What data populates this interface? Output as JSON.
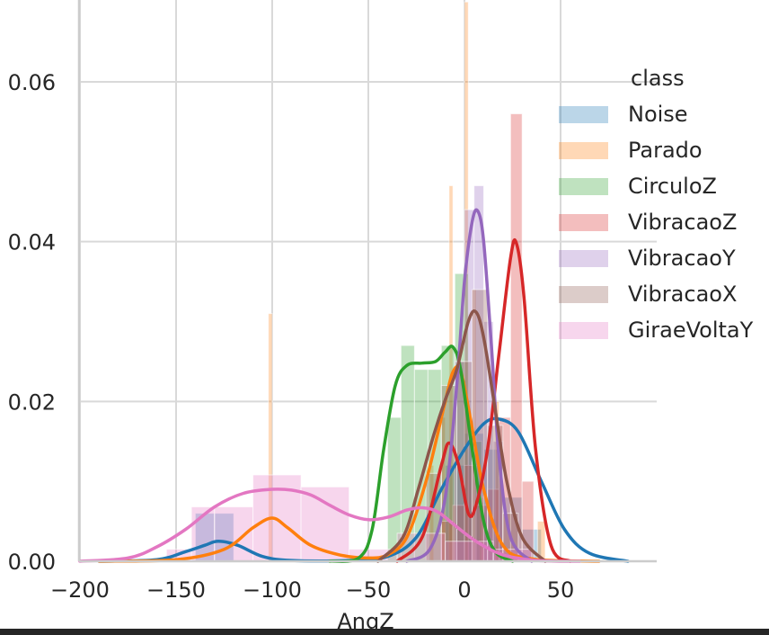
{
  "chart_data": {
    "type": "area",
    "title": "",
    "xlabel": "AngZ",
    "ylabel": "",
    "xlim": [
      -200,
      85
    ],
    "ylim": [
      0,
      0.07
    ],
    "xticks": [
      -200,
      -150,
      -100,
      -50,
      0,
      50
    ],
    "xtick_labels": [
      "−200",
      "−150",
      "−100",
      "−50",
      "0",
      "50"
    ],
    "yticks": [
      0.0,
      0.02,
      0.04,
      0.06
    ],
    "ytick_labels": [
      "0.00",
      "0.02",
      "0.04",
      "0.06"
    ],
    "grid": true,
    "legend": {
      "title": "class",
      "placement": "right"
    },
    "series": [
      {
        "name": "Noise",
        "color": "#1f77b4",
        "bars": [
          [
            -140,
            -130,
            0.006
          ],
          [
            -130,
            -120,
            0.006
          ],
          [
            -10,
            0,
            0.012
          ],
          [
            0,
            10,
            0.016
          ],
          [
            10,
            20,
            0.014
          ],
          [
            20,
            30,
            0.008
          ],
          [
            30,
            40,
            0.004
          ]
        ],
        "kde": [
          [
            -190,
            0
          ],
          [
            -160,
            0.0002
          ],
          [
            -145,
            0.0012
          ],
          [
            -135,
            0.002
          ],
          [
            -128,
            0.0025
          ],
          [
            -118,
            0.002
          ],
          [
            -105,
            0.0006
          ],
          [
            -90,
            0.0001
          ],
          [
            -60,
            0.0001
          ],
          [
            -40,
            0.0006
          ],
          [
            -25,
            0.003
          ],
          [
            -12,
            0.009
          ],
          [
            0,
            0.014
          ],
          [
            10,
            0.0172
          ],
          [
            18,
            0.0178
          ],
          [
            28,
            0.0162
          ],
          [
            40,
            0.01
          ],
          [
            52,
            0.004
          ],
          [
            65,
            0.001
          ],
          [
            85,
            0
          ]
        ]
      },
      {
        "name": "Parado",
        "color": "#ff7f0e",
        "bars": [
          [
            -102,
            -100,
            0.031
          ],
          [
            -8,
            -6,
            0.047
          ],
          [
            0,
            2,
            0.07
          ],
          [
            4,
            6,
            0.034
          ],
          [
            8,
            10,
            0.008
          ],
          [
            -18,
            -16,
            0.012
          ],
          [
            -12,
            -10,
            0.018
          ],
          [
            38,
            42,
            0.005
          ],
          [
            16,
            18,
            0.02
          ]
        ],
        "kde": [
          [
            -190,
            0
          ],
          [
            -150,
            0.0002
          ],
          [
            -125,
            0.0015
          ],
          [
            -110,
            0.0042
          ],
          [
            -100,
            0.0054
          ],
          [
            -92,
            0.0042
          ],
          [
            -80,
            0.002
          ],
          [
            -65,
            0.0008
          ],
          [
            -50,
            0.0004
          ],
          [
            -40,
            0.0008
          ],
          [
            -30,
            0.003
          ],
          [
            -20,
            0.01
          ],
          [
            -10,
            0.02
          ],
          [
            -6,
            0.0237
          ],
          [
            -2,
            0.0238
          ],
          [
            3,
            0.018
          ],
          [
            10,
            0.009
          ],
          [
            20,
            0.002
          ],
          [
            35,
            0.0003
          ],
          [
            70,
            0
          ]
        ]
      },
      {
        "name": "CirculoZ",
        "color": "#2ca02c",
        "bars": [
          [
            -40,
            -33,
            0.018
          ],
          [
            -33,
            -26,
            0.027
          ],
          [
            -26,
            -19,
            0.024
          ],
          [
            -19,
            -12,
            0.024
          ],
          [
            -12,
            -5,
            0.027
          ],
          [
            -5,
            2,
            0.036
          ],
          [
            2,
            9,
            0.015
          ]
        ],
        "kde": [
          [
            -70,
            0
          ],
          [
            -55,
            0.0004
          ],
          [
            -48,
            0.004
          ],
          [
            -42,
            0.014
          ],
          [
            -36,
            0.022
          ],
          [
            -30,
            0.0245
          ],
          [
            -22,
            0.0248
          ],
          [
            -15,
            0.025
          ],
          [
            -10,
            0.0262
          ],
          [
            -6,
            0.0268
          ],
          [
            -2,
            0.024
          ],
          [
            4,
            0.014
          ],
          [
            10,
            0.005
          ],
          [
            16,
            0.0012
          ],
          [
            25,
            0
          ]
        ]
      },
      {
        "name": "VibracaoZ",
        "color": "#d62728",
        "bars": [
          [
            -12,
            -6,
            0.005
          ],
          [
            -6,
            0,
            0.007
          ],
          [
            0,
            6,
            0.012
          ],
          [
            6,
            12,
            0.007
          ],
          [
            12,
            18,
            0.009
          ],
          [
            18,
            24,
            0.018
          ],
          [
            24,
            30,
            0.056
          ],
          [
            30,
            36,
            0.01
          ]
        ],
        "kde": [
          [
            -35,
            0
          ],
          [
            -22,
            0.003
          ],
          [
            -12,
            0.012
          ],
          [
            -8,
            0.0148
          ],
          [
            -3,
            0.012
          ],
          [
            2,
            0.006
          ],
          [
            6,
            0.007
          ],
          [
            12,
            0.014
          ],
          [
            18,
            0.026
          ],
          [
            24,
            0.038
          ],
          [
            27,
            0.0398
          ],
          [
            31,
            0.033
          ],
          [
            37,
            0.014
          ],
          [
            45,
            0.002
          ],
          [
            55,
            0
          ]
        ]
      },
      {
        "name": "VibracaoY",
        "color": "#9467bd",
        "bars": [
          [
            -5,
            0,
            0.025
          ],
          [
            0,
            5,
            0.044
          ],
          [
            5,
            10,
            0.047
          ],
          [
            10,
            15,
            0.03
          ],
          [
            15,
            20,
            0.015
          ]
        ],
        "kde": [
          [
            -30,
            0
          ],
          [
            -18,
            0.0015
          ],
          [
            -10,
            0.008
          ],
          [
            -4,
            0.022
          ],
          [
            0,
            0.035
          ],
          [
            4,
            0.0425
          ],
          [
            7,
            0.0438
          ],
          [
            10,
            0.04
          ],
          [
            14,
            0.027
          ],
          [
            18,
            0.013
          ],
          [
            24,
            0.003
          ],
          [
            35,
            0
          ]
        ]
      },
      {
        "name": "VibracaoX",
        "color": "#8c564b",
        "bars": [
          [
            -20,
            -12,
            0.011
          ],
          [
            -12,
            -4,
            0.022
          ],
          [
            -4,
            4,
            0.025
          ],
          [
            4,
            12,
            0.034
          ],
          [
            12,
            20,
            0.017
          ],
          [
            20,
            28,
            0.006
          ]
        ],
        "kde": [
          [
            -45,
            0
          ],
          [
            -32,
            0.003
          ],
          [
            -24,
            0.009
          ],
          [
            -16,
            0.0158
          ],
          [
            -10,
            0.0202
          ],
          [
            -4,
            0.024
          ],
          [
            2,
            0.03
          ],
          [
            6,
            0.0312
          ],
          [
            10,
            0.028
          ],
          [
            16,
            0.019
          ],
          [
            22,
            0.01
          ],
          [
            30,
            0.003
          ],
          [
            42,
            0
          ]
        ]
      },
      {
        "name": "GiraeVoltaY",
        "color": "#e377c2",
        "bars": [
          [
            -155,
            -142,
            0.0015
          ],
          [
            -142,
            -130,
            0.0068
          ],
          [
            -130,
            -110,
            0.0068
          ],
          [
            -110,
            -85,
            0.0108
          ],
          [
            -85,
            -60,
            0.0093
          ],
          [
            -60,
            -35,
            0.0015
          ],
          [
            -35,
            -10,
            0.0035
          ],
          [
            -10,
            15,
            0.0025
          ],
          [
            15,
            35,
            0.0015
          ]
        ],
        "kde": [
          [
            -200,
            0
          ],
          [
            -175,
            0.0004
          ],
          [
            -160,
            0.0018
          ],
          [
            -145,
            0.004
          ],
          [
            -130,
            0.0068
          ],
          [
            -115,
            0.0085
          ],
          [
            -100,
            0.009
          ],
          [
            -90,
            0.0089
          ],
          [
            -80,
            0.0083
          ],
          [
            -70,
            0.007
          ],
          [
            -60,
            0.0058
          ],
          [
            -50,
            0.0052
          ],
          [
            -40,
            0.0055
          ],
          [
            -30,
            0.0064
          ],
          [
            -22,
            0.0067
          ],
          [
            -14,
            0.0062
          ],
          [
            -5,
            0.0045
          ],
          [
            6,
            0.0025
          ],
          [
            20,
            0.0008
          ],
          [
            38,
            0.0001
          ],
          [
            60,
            0
          ]
        ]
      }
    ]
  }
}
